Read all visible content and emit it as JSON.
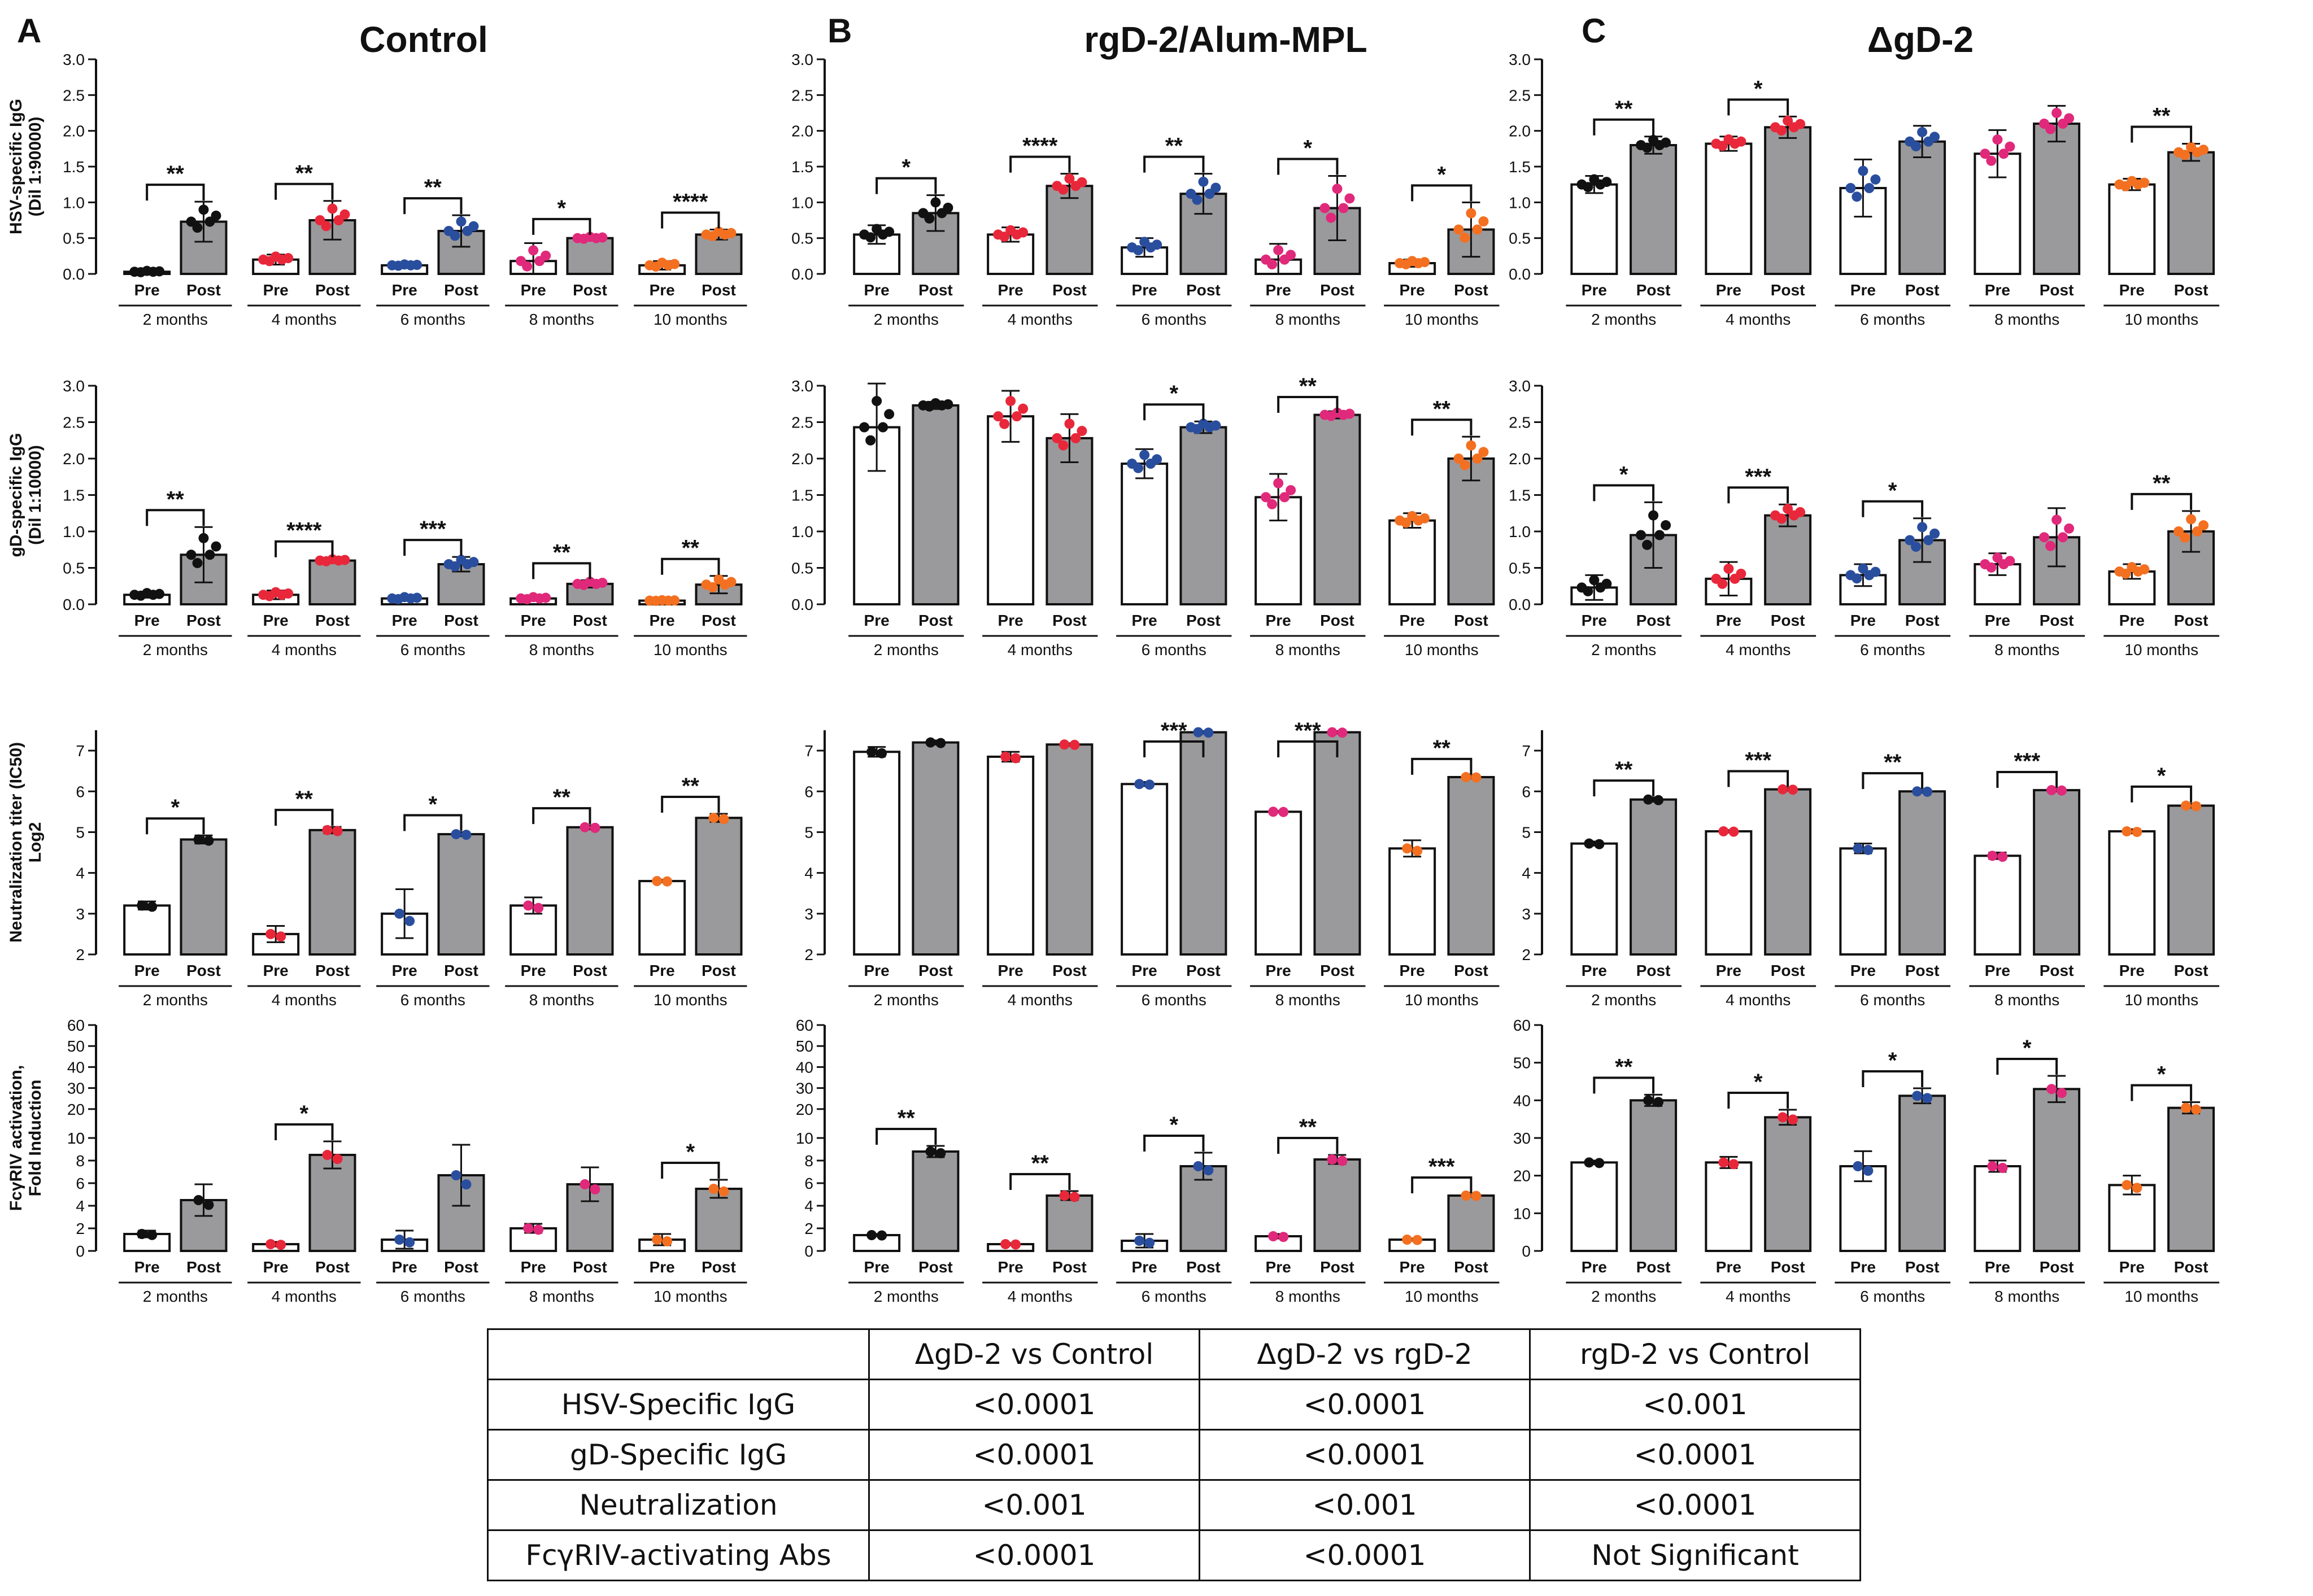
{
  "colors": {
    "bar_pre": "#ffffff",
    "bar_post": "#9a9a9c",
    "axis": "#111111",
    "time_points": [
      "#111111",
      "#e8283a",
      "#2a4e9e",
      "#e0297a",
      "#f37021"
    ]
  },
  "panels": [
    {
      "letter": "A",
      "title": "Control"
    },
    {
      "letter": "B",
      "title": "rgD-2/Alum-MPL"
    },
    {
      "letter": "C",
      "title": "ΔgD-2"
    }
  ],
  "row_ylabels": [
    [
      "HSV-specific IgG",
      "(Dil 1:90000)"
    ],
    [
      "gD-specific IgG",
      "(Dil 1:10000)"
    ],
    [
      "Neutralization titer (IC50)",
      "Log2"
    ],
    [
      "FcγRIV activation,",
      "Fold Induction"
    ]
  ],
  "bar_labels": [
    "Pre",
    "Post"
  ],
  "chart_data": [
    {
      "type": "bar",
      "panel": "A",
      "row": 1,
      "ylim": [
        0,
        3
      ],
      "yticks": [
        "0.0",
        "0.5",
        "1.0",
        "1.5",
        "2.0",
        "2.5",
        "3.0"
      ],
      "categories": [
        "2 months",
        "4 months",
        "6 months",
        "8 months",
        "10 months"
      ],
      "series": [
        {
          "name": "Pre",
          "values": [
            0.03,
            0.2,
            0.12,
            0.18,
            0.12
          ],
          "err": [
            0.02,
            0.07,
            0.02,
            0.25,
            0.06
          ]
        },
        {
          "name": "Post",
          "values": [
            0.73,
            0.75,
            0.6,
            0.5,
            0.55
          ],
          "err": [
            0.28,
            0.27,
            0.22,
            0.03,
            0.07
          ]
        }
      ],
      "significance": [
        "**",
        "**",
        "**",
        "*",
        "****"
      ]
    },
    {
      "type": "bar",
      "panel": "B",
      "row": 1,
      "ylim": [
        0,
        3
      ],
      "yticks": [
        "0.0",
        "0.5",
        "1.0",
        "1.5",
        "2.0",
        "2.5",
        "3.0"
      ],
      "categories": [
        "2 months",
        "4 months",
        "6 months",
        "8 months",
        "10 months"
      ],
      "series": [
        {
          "name": "Pre",
          "values": [
            0.55,
            0.55,
            0.37,
            0.2,
            0.15
          ],
          "err": [
            0.13,
            0.1,
            0.13,
            0.22,
            0.05
          ]
        },
        {
          "name": "Post",
          "values": [
            0.85,
            1.23,
            1.12,
            0.92,
            0.62
          ],
          "err": [
            0.25,
            0.17,
            0.28,
            0.45,
            0.38
          ]
        }
      ],
      "significance": [
        "*",
        "****",
        "**",
        "*",
        "*"
      ]
    },
    {
      "type": "bar",
      "panel": "C",
      "row": 1,
      "ylim": [
        0,
        3
      ],
      "yticks": [
        "0.0",
        "0.5",
        "1.0",
        "1.5",
        "2.0",
        "2.5",
        "3.0"
      ],
      "categories": [
        "2 months",
        "4 months",
        "6 months",
        "8 months",
        "10 months"
      ],
      "series": [
        {
          "name": "Pre",
          "values": [
            1.25,
            1.82,
            1.2,
            1.68,
            1.25
          ],
          "err": [
            0.12,
            0.1,
            0.4,
            0.33,
            0.08
          ]
        },
        {
          "name": "Post",
          "values": [
            1.8,
            2.05,
            1.85,
            2.1,
            1.7
          ],
          "err": [
            0.12,
            0.15,
            0.22,
            0.25,
            0.12
          ]
        }
      ],
      "significance": [
        "**",
        "*",
        "",
        "",
        "**"
      ]
    },
    {
      "type": "bar",
      "panel": "A",
      "row": 2,
      "ylim": [
        0,
        3
      ],
      "yticks": [
        "0.0",
        "0.5",
        "1.0",
        "1.5",
        "2.0",
        "2.5",
        "3.0"
      ],
      "categories": [
        "2 months",
        "4 months",
        "6 months",
        "8 months",
        "10 months"
      ],
      "series": [
        {
          "name": "Pre",
          "values": [
            0.13,
            0.13,
            0.08,
            0.08,
            0.05
          ],
          "err": [
            0.04,
            0.06,
            0.03,
            0.03,
            0.01
          ]
        },
        {
          "name": "Post",
          "values": [
            0.68,
            0.6,
            0.55,
            0.28,
            0.27
          ],
          "err": [
            0.38,
            0.03,
            0.1,
            0.05,
            0.12
          ]
        }
      ],
      "significance": [
        "**",
        "****",
        "***",
        "**",
        "**"
      ]
    },
    {
      "type": "bar",
      "panel": "B",
      "row": 2,
      "ylim": [
        0,
        3
      ],
      "yticks": [
        "0.0",
        "0.5",
        "1.0",
        "1.5",
        "2.0",
        "2.5",
        "3.0"
      ],
      "categories": [
        "2 months",
        "4 months",
        "6 months",
        "8 months",
        "10 months"
      ],
      "series": [
        {
          "name": "Pre",
          "values": [
            2.43,
            2.58,
            1.93,
            1.47,
            1.15
          ],
          "err": [
            0.6,
            0.35,
            0.2,
            0.32,
            0.1
          ]
        },
        {
          "name": "Post",
          "values": [
            2.73,
            2.28,
            2.43,
            2.6,
            2.0
          ],
          "err": [
            0.05,
            0.33,
            0.08,
            0.05,
            0.3
          ]
        }
      ],
      "significance": [
        "",
        "",
        "*",
        "**",
        "**"
      ]
    },
    {
      "type": "bar",
      "panel": "C",
      "row": 2,
      "ylim": [
        0,
        3
      ],
      "yticks": [
        "0.0",
        "0.5",
        "1.0",
        "1.5",
        "2.0",
        "2.5",
        "3.0"
      ],
      "categories": [
        "2 months",
        "4 months",
        "6 months",
        "8 months",
        "10 months"
      ],
      "series": [
        {
          "name": "Pre",
          "values": [
            0.23,
            0.35,
            0.4,
            0.55,
            0.45
          ],
          "err": [
            0.17,
            0.23,
            0.15,
            0.15,
            0.1
          ]
        },
        {
          "name": "Post",
          "values": [
            0.95,
            1.22,
            0.88,
            0.92,
            1.0
          ],
          "err": [
            0.45,
            0.15,
            0.3,
            0.4,
            0.28
          ]
        }
      ],
      "significance": [
        "*",
        "***",
        "*",
        "",
        "**"
      ]
    },
    {
      "type": "bar",
      "panel": "A",
      "row": 3,
      "ylim": [
        2,
        7.5
      ],
      "yticks": [
        "2",
        "3",
        "4",
        "5",
        "6",
        "7"
      ],
      "categories": [
        "2 months",
        "4 months",
        "6 months",
        "8 months",
        "10 months"
      ],
      "series": [
        {
          "name": "Pre",
          "values": [
            3.2,
            2.5,
            3.0,
            3.2,
            3.8
          ],
          "err": [
            0.1,
            0.2,
            0.6,
            0.2,
            0.03
          ]
        },
        {
          "name": "Post",
          "values": [
            4.82,
            5.05,
            4.95,
            5.12,
            5.35
          ],
          "err": [
            0.1,
            0.08,
            0.05,
            0.05,
            0.1
          ]
        }
      ],
      "significance": [
        "*",
        "**",
        "*",
        "**",
        "**"
      ]
    },
    {
      "type": "bar",
      "panel": "B",
      "row": 3,
      "ylim": [
        2,
        7.5
      ],
      "yticks": [
        "2",
        "3",
        "4",
        "5",
        "6",
        "7"
      ],
      "categories": [
        "2 months",
        "4 months",
        "6 months",
        "8 months",
        "10 months"
      ],
      "series": [
        {
          "name": "Pre",
          "values": [
            6.97,
            6.85,
            6.18,
            5.5,
            4.6
          ],
          "err": [
            0.12,
            0.12,
            0.05,
            0.02,
            0.2
          ]
        },
        {
          "name": "Post",
          "values": [
            7.2,
            7.15,
            7.45,
            7.45,
            6.35
          ],
          "err": [
            0.05,
            0.03,
            0.03,
            0.03,
            0.03
          ]
        }
      ],
      "significance": [
        "",
        "",
        "***",
        "***",
        "**"
      ]
    },
    {
      "type": "bar",
      "panel": "C",
      "row": 3,
      "ylim": [
        2,
        7.5
      ],
      "yticks": [
        "2",
        "3",
        "4",
        "5",
        "6",
        "7"
      ],
      "categories": [
        "2 months",
        "4 months",
        "6 months",
        "8 months",
        "10 months"
      ],
      "series": [
        {
          "name": "Pre",
          "values": [
            4.72,
            5.02,
            4.6,
            4.42,
            5.02
          ],
          "err": [
            0.05,
            0.03,
            0.12,
            0.08,
            0.05
          ]
        },
        {
          "name": "Post",
          "values": [
            5.8,
            6.05,
            6.0,
            6.03,
            5.65
          ],
          "err": [
            0.05,
            0.03,
            0.03,
            0.03,
            0.05
          ]
        }
      ],
      "significance": [
        "**",
        "***",
        "**",
        "***",
        "*"
      ]
    },
    {
      "type": "bar",
      "panel": "A",
      "row": 4,
      "ylim": [
        0,
        60
      ],
      "yticks_upper": [
        "10",
        "20",
        "30",
        "40",
        "50",
        "60"
      ],
      "yticks_lower": [
        "0",
        "2",
        "4",
        "6",
        "8",
        "10"
      ],
      "categories": [
        "2 months",
        "4 months",
        "6 months",
        "8 months",
        "10 months"
      ],
      "series": [
        {
          "name": "Pre",
          "values": [
            1.5,
            0.6,
            1.0,
            2.0,
            1.0
          ],
          "err": [
            0.3,
            0.2,
            0.8,
            0.4,
            0.5
          ]
        },
        {
          "name": "Post",
          "values": [
            4.5,
            8.5,
            6.7,
            5.9,
            5.5
          ],
          "err": [
            1.4,
            1.2,
            2.7,
            1.5,
            0.8
          ]
        }
      ],
      "significance": [
        "",
        "*",
        "",
        "",
        "*"
      ]
    },
    {
      "type": "bar",
      "panel": "B",
      "row": 4,
      "ylim": [
        0,
        60
      ],
      "yticks": [
        "0",
        "2",
        "4",
        "6",
        "8",
        "10",
        "20",
        "30",
        "40",
        "50",
        "60"
      ],
      "categories": [
        "2 months",
        "4 months",
        "6 months",
        "8 months",
        "10 months"
      ],
      "series": [
        {
          "name": "Pre",
          "values": [
            1.4,
            0.6,
            0.9,
            1.3,
            1.0
          ],
          "err": [
            0.1,
            0.1,
            0.6,
            0.2,
            0.1
          ]
        },
        {
          "name": "Post",
          "values": [
            8.8,
            4.9,
            7.5,
            8.1,
            4.9
          ],
          "err": [
            0.5,
            0.4,
            1.2,
            0.4,
            0.1
          ]
        }
      ],
      "significance": [
        "**",
        "**",
        "*",
        "**",
        "***"
      ]
    },
    {
      "type": "bar",
      "panel": "C",
      "row": 4,
      "ylim": [
        0,
        60
      ],
      "yticks": [
        "0",
        "10",
        "20",
        "30",
        "40",
        "50",
        "60"
      ],
      "categories": [
        "2 months",
        "4 months",
        "6 months",
        "8 months",
        "10 months"
      ],
      "series": [
        {
          "name": "Pre",
          "values": [
            23.5,
            23.5,
            22.5,
            22.5,
            17.5
          ],
          "err": [
            0.5,
            1.5,
            4.0,
            1.5,
            2.5
          ]
        },
        {
          "name": "Post",
          "values": [
            40.0,
            35.5,
            41.2,
            43.0,
            38.0
          ],
          "err": [
            1.5,
            2.0,
            2.0,
            3.5,
            1.5
          ]
        }
      ],
      "significance": [
        "**",
        "*",
        "*",
        "*",
        "*"
      ]
    }
  ],
  "table": {
    "header": [
      "",
      "ΔgD-2 vs Control",
      "ΔgD-2 vs rgD-2",
      "rgD-2 vs Control"
    ],
    "rows": [
      [
        "HSV-Specific IgG",
        "<0.0001",
        "<0.0001",
        "<0.001"
      ],
      [
        "gD-Specific IgG",
        "<0.0001",
        "<0.0001",
        "<0.0001"
      ],
      [
        "Neutralization",
        "<0.001",
        "<0.001",
        "<0.0001"
      ],
      [
        "FcγRIV-activating Abs",
        "<0.0001",
        "<0.0001",
        "Not Significant"
      ]
    ]
  }
}
